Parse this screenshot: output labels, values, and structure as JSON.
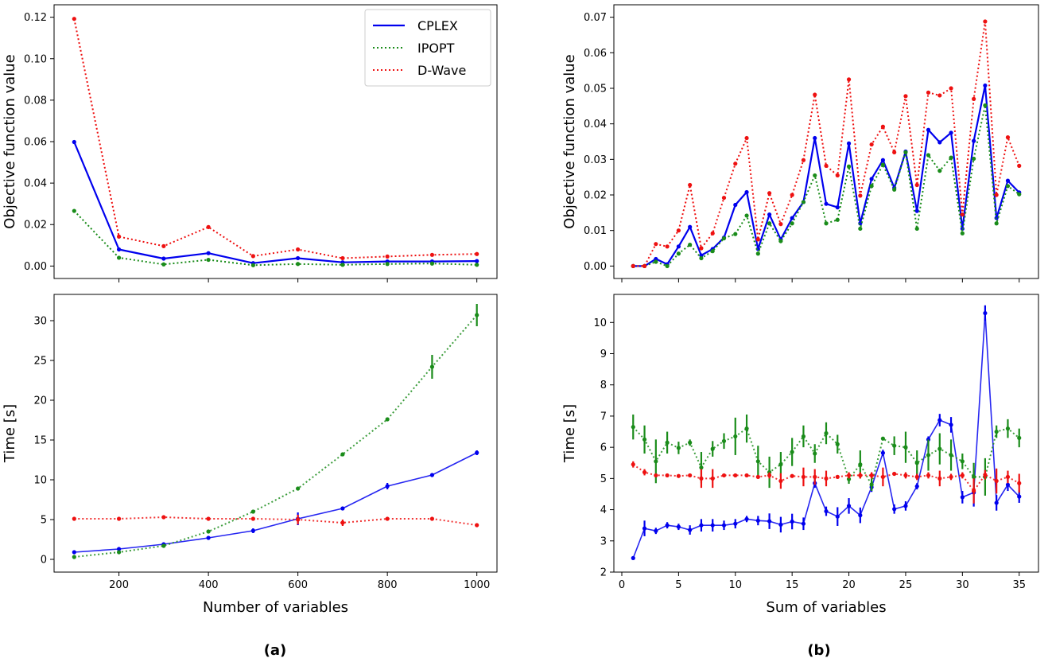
{
  "colors": {
    "CPLEX": "#0000ee",
    "IPOPT": "#1a8c1a",
    "D-Wave": "#ee1111"
  },
  "panel_labels": {
    "a": "(a)",
    "b": "(b)"
  },
  "chart_data": [
    {
      "id": "a-top",
      "type": "line",
      "xlabel": "",
      "ylabel": "Objective function value",
      "xlim": [
        55,
        1045
      ],
      "ylim": [
        -0.006,
        0.126
      ],
      "xticks": [
        200,
        400,
        600,
        800,
        1000
      ],
      "show_xticklabels": false,
      "yticks": [
        0.0,
        0.02,
        0.04,
        0.06,
        0.08,
        0.1,
        0.12
      ],
      "ytick_labels": [
        "0.00",
        "0.02",
        "0.04",
        "0.06",
        "0.08",
        "0.10",
        "0.12"
      ],
      "x": [
        100,
        200,
        300,
        400,
        500,
        600,
        700,
        800,
        900,
        1000
      ],
      "series": [
        {
          "name": "CPLEX",
          "style": "solid",
          "values": [
            0.0598,
            0.008,
            0.0036,
            0.0062,
            0.0014,
            0.0038,
            0.0018,
            0.0022,
            0.0022,
            0.0024
          ]
        },
        {
          "name": "IPOPT",
          "style": "dotted",
          "values": [
            0.0266,
            0.004,
            0.0008,
            0.003,
            0.0004,
            0.001,
            0.0006,
            0.001,
            0.0012,
            0.0006
          ]
        },
        {
          "name": "D-Wave",
          "style": "dotted",
          "values": [
            0.1192,
            0.0142,
            0.0096,
            0.0188,
            0.0048,
            0.008,
            0.0038,
            0.0046,
            0.0054,
            0.0058
          ]
        }
      ],
      "legend": {
        "position": "top-right",
        "entries": [
          "CPLEX",
          "IPOPT",
          "D-Wave"
        ]
      }
    },
    {
      "id": "a-bottom",
      "type": "line",
      "xlabel": "Number of variables",
      "ylabel": "Time [s]",
      "xlim": [
        55,
        1045
      ],
      "ylim": [
        -1.6,
        33.3
      ],
      "xticks": [
        200,
        400,
        600,
        800,
        1000
      ],
      "show_xticklabels": true,
      "yticks": [
        0,
        5,
        10,
        15,
        20,
        25,
        30
      ],
      "ytick_labels": [
        "0",
        "5",
        "10",
        "15",
        "20",
        "25",
        "30"
      ],
      "x": [
        100,
        200,
        300,
        400,
        500,
        600,
        700,
        800,
        900,
        1000
      ],
      "series": [
        {
          "name": "CPLEX",
          "style": "solid",
          "values": [
            0.9,
            1.3,
            1.9,
            2.7,
            3.6,
            5.1,
            6.4,
            9.2,
            10.6,
            13.4
          ],
          "errors": [
            0.1,
            0.1,
            0.1,
            0.2,
            0.3,
            0.8,
            0.1,
            0.4,
            0.2,
            0.3
          ]
        },
        {
          "name": "IPOPT",
          "style": "dotted",
          "values": [
            0.3,
            0.9,
            1.7,
            3.5,
            6.0,
            8.9,
            13.2,
            17.6,
            24.2,
            30.7
          ],
          "errors": [
            0.1,
            0.1,
            0.1,
            0.2,
            0.2,
            0.2,
            0.2,
            0.2,
            1.5,
            1.4
          ]
        },
        {
          "name": "D-Wave",
          "style": "dotted",
          "values": [
            5.1,
            5.1,
            5.3,
            5.1,
            5.1,
            5.0,
            4.6,
            5.1,
            5.1,
            4.3
          ],
          "errors": [
            0.1,
            0.1,
            0.1,
            0.1,
            0.1,
            0.6,
            0.4,
            0.1,
            0.1,
            0.1
          ]
        }
      ]
    },
    {
      "id": "b-top",
      "type": "line",
      "xlabel": "",
      "ylabel": "Objective function value",
      "xlim": [
        -0.7,
        36.7
      ],
      "ylim": [
        -0.0035,
        0.0735
      ],
      "xticks": [
        0,
        5,
        10,
        15,
        20,
        25,
        30,
        35
      ],
      "show_xticklabels": false,
      "yticks": [
        0.0,
        0.01,
        0.02,
        0.03,
        0.04,
        0.05,
        0.06,
        0.07
      ],
      "ytick_labels": [
        "0.00",
        "0.01",
        "0.02",
        "0.03",
        "0.04",
        "0.05",
        "0.06",
        "0.07"
      ],
      "x": [
        1,
        2,
        3,
        4,
        5,
        6,
        7,
        8,
        9,
        10,
        11,
        12,
        13,
        14,
        15,
        16,
        17,
        18,
        19,
        20,
        21,
        22,
        23,
        24,
        25,
        26,
        27,
        28,
        29,
        30,
        31,
        32,
        33,
        34,
        35
      ],
      "series": [
        {
          "name": "CPLEX",
          "style": "solid",
          "values": [
            0.0,
            0.0,
            0.002,
            0.0005,
            0.0055,
            0.011,
            0.003,
            0.0048,
            0.008,
            0.0172,
            0.0208,
            0.0048,
            0.0145,
            0.0075,
            0.0135,
            0.018,
            0.036,
            0.0175,
            0.0165,
            0.0345,
            0.012,
            0.0245,
            0.0298,
            0.022,
            0.0322,
            0.0155,
            0.0383,
            0.0348,
            0.0375,
            0.0105,
            0.0352,
            0.0508,
            0.0135,
            0.024,
            0.0207
          ]
        },
        {
          "name": "IPOPT",
          "style": "dotted",
          "values": [
            0.0,
            0.0,
            0.0012,
            0.0,
            0.0035,
            0.006,
            0.0022,
            0.0042,
            0.0078,
            0.009,
            0.0142,
            0.0035,
            0.012,
            0.007,
            0.012,
            0.018,
            0.0255,
            0.012,
            0.013,
            0.028,
            0.0105,
            0.0225,
            0.0285,
            0.0215,
            0.032,
            0.0105,
            0.0312,
            0.0268,
            0.0305,
            0.0092,
            0.0302,
            0.0452,
            0.012,
            0.0225,
            0.0202
          ]
        },
        {
          "name": "D-Wave",
          "style": "dotted",
          "values": [
            0.0,
            0.0,
            0.0062,
            0.0055,
            0.01,
            0.0228,
            0.005,
            0.0092,
            0.0192,
            0.0288,
            0.036,
            0.0075,
            0.0205,
            0.0118,
            0.02,
            0.0298,
            0.0482,
            0.0282,
            0.0255,
            0.0525,
            0.0198,
            0.0342,
            0.0392,
            0.032,
            0.0478,
            0.0228,
            0.0488,
            0.048,
            0.05,
            0.0145,
            0.047,
            0.0688,
            0.02,
            0.0362,
            0.0282
          ]
        }
      ]
    },
    {
      "id": "b-bottom",
      "type": "line",
      "xlabel": "Sum of variables",
      "ylabel": "Time [s]",
      "xlim": [
        -0.7,
        36.7
      ],
      "ylim": [
        2.0,
        10.9
      ],
      "xticks": [
        0,
        5,
        10,
        15,
        20,
        25,
        30,
        35
      ],
      "show_xticklabels": true,
      "yticks": [
        2,
        3,
        4,
        5,
        6,
        7,
        8,
        9,
        10
      ],
      "ytick_labels": [
        "2",
        "3",
        "4",
        "5",
        "6",
        "7",
        "8",
        "9",
        "10"
      ],
      "x": [
        1,
        2,
        3,
        4,
        5,
        6,
        7,
        8,
        9,
        10,
        11,
        12,
        13,
        14,
        15,
        16,
        17,
        18,
        19,
        20,
        21,
        22,
        23,
        24,
        25,
        26,
        27,
        28,
        29,
        30,
        31,
        32,
        33,
        34,
        35
      ],
      "series": [
        {
          "name": "CPLEX",
          "style": "solid",
          "values": [
            2.45,
            3.4,
            3.32,
            3.5,
            3.45,
            3.35,
            3.5,
            3.5,
            3.5,
            3.55,
            3.7,
            3.65,
            3.63,
            3.52,
            3.62,
            3.55,
            4.85,
            3.95,
            3.78,
            4.12,
            3.82,
            4.72,
            5.82,
            4.02,
            4.12,
            4.75,
            6.25,
            6.87,
            6.72,
            4.4,
            4.55,
            10.3,
            4.22,
            4.8,
            4.42
          ],
          "errors": [
            0.05,
            0.25,
            0.1,
            0.1,
            0.1,
            0.15,
            0.2,
            0.2,
            0.15,
            0.15,
            0.1,
            0.15,
            0.25,
            0.25,
            0.25,
            0.2,
            0.15,
            0.15,
            0.3,
            0.25,
            0.25,
            0.15,
            0.1,
            0.15,
            0.15,
            0.1,
            0.1,
            0.2,
            0.25,
            0.2,
            0.45,
            0.25,
            0.25,
            0.2,
            0.2
          ]
        },
        {
          "name": "IPOPT",
          "style": "dotted",
          "values": [
            6.65,
            6.25,
            5.55,
            6.15,
            5.98,
            6.15,
            5.35,
            5.95,
            6.2,
            6.35,
            6.6,
            5.55,
            5.2,
            5.45,
            5.85,
            6.35,
            5.8,
            6.45,
            6.1,
            4.98,
            5.45,
            4.8,
            6.28,
            6.05,
            6.0,
            5.5,
            5.75,
            5.95,
            5.75,
            5.55,
            5.05,
            5.05,
            6.5,
            6.6,
            6.3
          ],
          "errors": [
            0.4,
            0.45,
            0.7,
            0.35,
            0.2,
            0.1,
            0.5,
            0.25,
            0.25,
            0.6,
            0.45,
            0.5,
            0.5,
            0.4,
            0.45,
            0.35,
            0.3,
            0.35,
            0.3,
            0.15,
            0.45,
            0.2,
            0.05,
            0.3,
            0.5,
            0.4,
            0.5,
            0.5,
            0.5,
            0.25,
            0.45,
            0.6,
            0.2,
            0.3,
            0.3
          ]
        },
        {
          "name": "D-Wave",
          "style": "dotted",
          "values": [
            5.45,
            5.2,
            5.1,
            5.1,
            5.08,
            5.1,
            5.0,
            5.0,
            5.1,
            5.1,
            5.1,
            5.05,
            5.1,
            4.92,
            5.08,
            5.05,
            5.05,
            5.0,
            5.05,
            5.1,
            5.1,
            5.1,
            5.05,
            5.15,
            5.1,
            5.05,
            5.1,
            5.0,
            5.05,
            5.1,
            4.6,
            5.12,
            4.92,
            5.05,
            4.85
          ],
          "errors": [
            0.1,
            0.1,
            0.05,
            0.05,
            0.05,
            0.05,
            0.3,
            0.3,
            0.05,
            0.05,
            0.05,
            0.05,
            0.1,
            0.25,
            0.05,
            0.3,
            0.25,
            0.25,
            0.05,
            0.1,
            0.1,
            0.1,
            0.3,
            0.05,
            0.1,
            0.1,
            0.1,
            0.25,
            0.1,
            0.1,
            0.4,
            0.15,
            0.4,
            0.2,
            0.3
          ]
        }
      ]
    }
  ]
}
